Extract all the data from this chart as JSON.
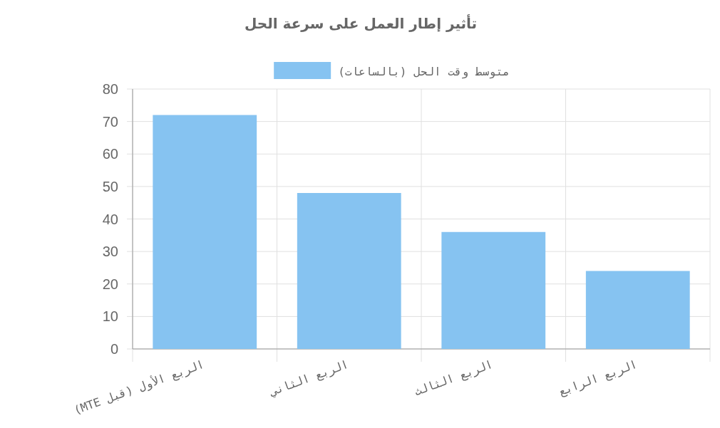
{
  "chart_data": {
    "type": "bar",
    "title": "تأثير إطار العمل على سرعة الحل",
    "categories": [
      "الربع الأول (قبل MTE)",
      "الربع الثاني",
      "الربع الثالث",
      "الربع الرابع"
    ],
    "series": [
      {
        "name": "متوسط وقت الحل (بالساعات)",
        "color": "#86c3f1",
        "values": [
          72,
          48,
          36,
          24
        ]
      }
    ],
    "ylim": [
      0,
      80
    ],
    "yticks": [
      0,
      10,
      20,
      30,
      40,
      50,
      60,
      70,
      80
    ],
    "grid": true,
    "legend": "top"
  }
}
